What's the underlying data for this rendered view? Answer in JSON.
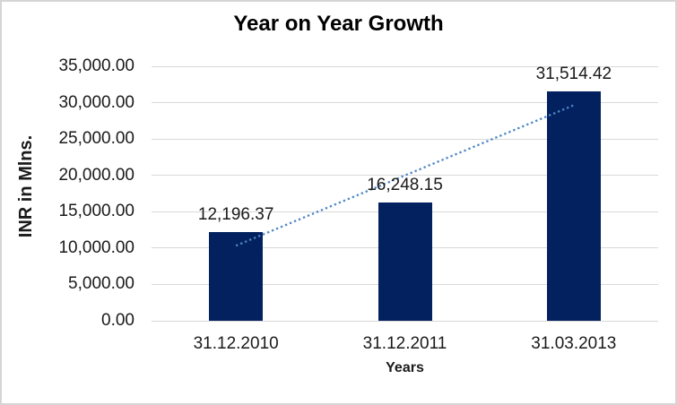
{
  "chart_data": {
    "type": "bar",
    "title": "Year on Year Growth",
    "xlabel": "Years",
    "ylabel": "INR in Mlns.",
    "categories": [
      "31.12.2010",
      "31.12.2011",
      "31.03.2013"
    ],
    "values": [
      12196.37,
      16248.15,
      31514.42
    ],
    "data_labels": [
      "12,196.37",
      "16,248.15",
      "31,514.42"
    ],
    "ylim": [
      0,
      35000
    ],
    "y_step": 5000,
    "y_tick_labels": [
      "0.00",
      "5,000.00",
      "10,000.00",
      "15,000.00",
      "20,000.00",
      "25,000.00",
      "30,000.00",
      "35,000.00"
    ],
    "grid": true,
    "legend": false,
    "trendline": {
      "type": "linear",
      "dash": "dotted"
    },
    "colors": {
      "bar": "#04215F",
      "trendline": "#4D86C6",
      "gridline": "#D9D9D9",
      "axis_text": "#1A1A1A",
      "title_text": "#000000",
      "chart_border": "#D5D5D5",
      "background": "#FFFFFF"
    }
  }
}
